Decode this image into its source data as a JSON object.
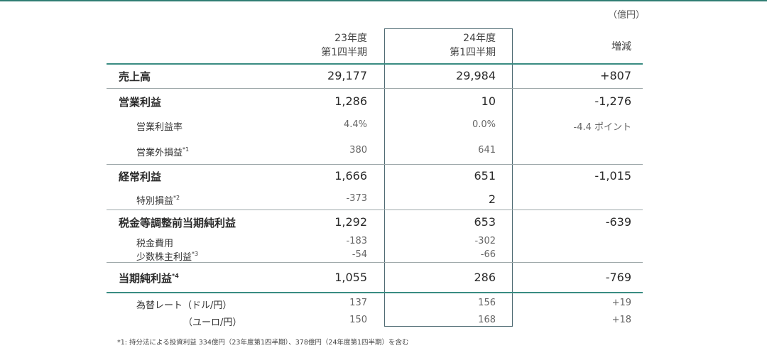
{
  "unit": "（億円）",
  "headers": {
    "col1_line1": "23年度",
    "col1_line2": "第1四半期",
    "col2_line1": "24年度",
    "col2_line2": "第1四半期",
    "col3": "増減"
  },
  "rows": [
    {
      "label": "売上高",
      "sup": "",
      "v1": "29,177",
      "v2": "29,984",
      "v3": "+807"
    },
    {
      "label": "営業利益",
      "sup": "",
      "v1": "1,286",
      "v2": "10",
      "v3": "-1,276"
    },
    {
      "label": "営業利益率",
      "sup": "",
      "v1": "4.4%",
      "v2": "0.0%",
      "v3": "-4.4 ポイント"
    },
    {
      "label": "営業外損益",
      "sup": "*1",
      "v1": "380",
      "v2": "641",
      "v3": ""
    },
    {
      "label": "経常利益",
      "sup": "",
      "v1": "1,666",
      "v2": "651",
      "v3": "-1,015"
    },
    {
      "label": "特別損益",
      "sup": "*2",
      "v1": "-373",
      "v2": "2",
      "v3": ""
    },
    {
      "label": "税金等調整前当期純利益",
      "sup": "",
      "v1": "1,292",
      "v2": "653",
      "v3": "-639"
    },
    {
      "label": "税金費用",
      "sup": "",
      "v1": "-183",
      "v2": "-302",
      "v3": ""
    },
    {
      "label": "少数株主利益",
      "sup": "*3",
      "v1": "-54",
      "v2": "-66",
      "v3": ""
    },
    {
      "label": "当期純利益",
      "sup": "*4",
      "v1": "1,055",
      "v2": "286",
      "v3": "-769"
    },
    {
      "label": "為替レート（ドル/円）",
      "sup": "",
      "v1": "137",
      "v2": "156",
      "v3": "+19"
    },
    {
      "label": "（ユーロ/円）",
      "sup": "",
      "v1": "150",
      "v2": "168",
      "v3": "+18"
    }
  ],
  "footnote": "*1: 持分法による投資利益 334億円（23年度第1四半期）、378億円（24年度第1四半期）を含む"
}
